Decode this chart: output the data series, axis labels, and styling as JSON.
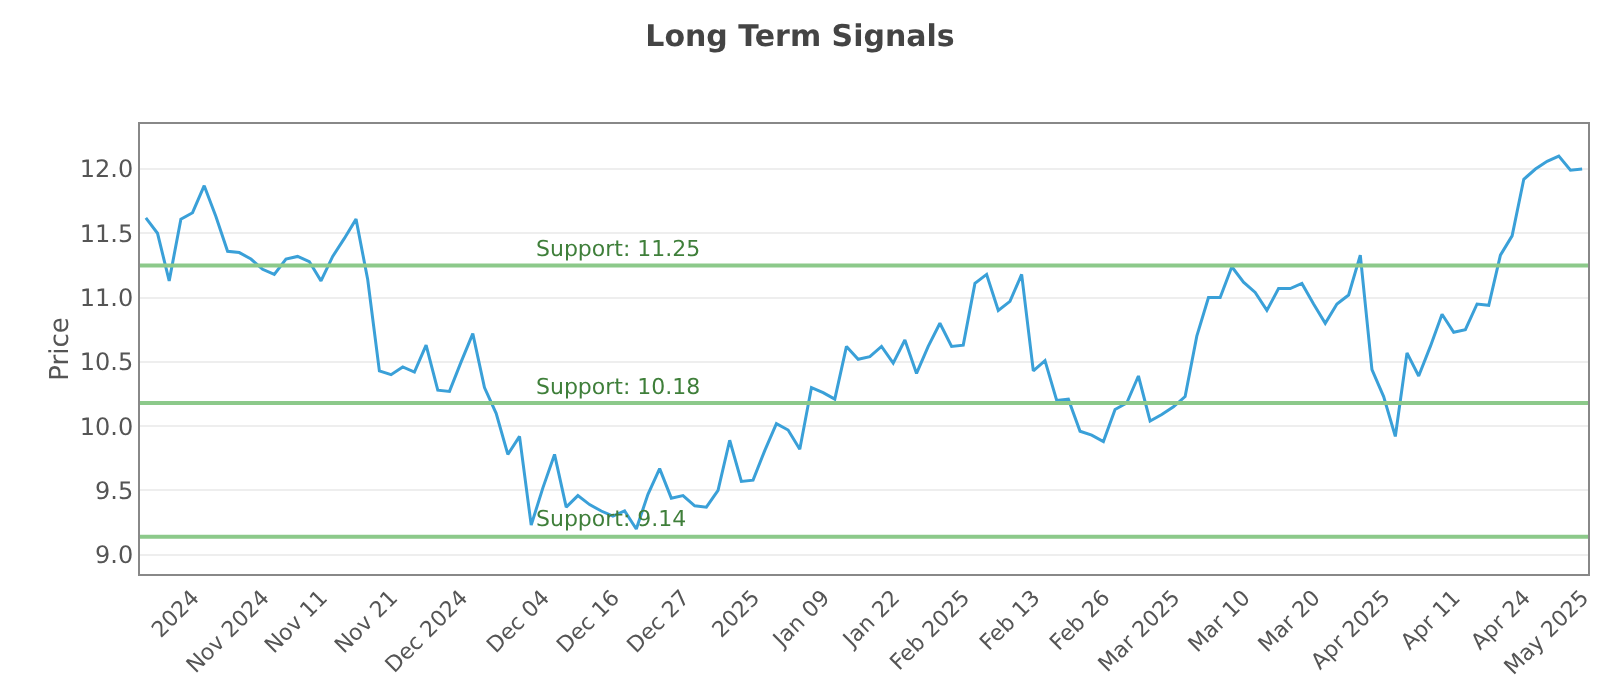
{
  "chart_data": {
    "type": "line",
    "title": "Long Term Signals",
    "ylabel": "Price",
    "categories": [
      null,
      null,
      null,
      null,
      "2024",
      null,
      null,
      null,
      null,
      null,
      "Nov 2024",
      null,
      null,
      null,
      null,
      "Nov 11",
      null,
      null,
      null,
      null,
      null,
      "Nov 21",
      null,
      null,
      null,
      null,
      null,
      "Dec 2024",
      null,
      null,
      null,
      null,
      null,
      null,
      "Dec 04",
      null,
      null,
      null,
      null,
      null,
      "Dec 16",
      null,
      null,
      null,
      null,
      null,
      "Dec 27",
      null,
      null,
      null,
      null,
      null,
      "2025",
      null,
      null,
      null,
      null,
      null,
      "Jan 09",
      null,
      null,
      null,
      null,
      null,
      "Jan 22",
      null,
      null,
      null,
      null,
      null,
      "Feb 2025",
      null,
      null,
      null,
      null,
      null,
      "Feb 13",
      null,
      null,
      null,
      null,
      null,
      "Feb 26",
      null,
      null,
      null,
      null,
      null,
      "Mar 2025",
      null,
      null,
      null,
      null,
      null,
      "Mar 10",
      null,
      null,
      null,
      null,
      null,
      "Mar 20",
      null,
      null,
      null,
      null,
      null,
      "Apr 2025",
      null,
      null,
      null,
      null,
      null,
      "Apr 11",
      null,
      null,
      null,
      null,
      null,
      "Apr 24",
      null,
      null,
      null,
      null,
      "May 2025"
    ],
    "series": [
      {
        "color": "#3aa0d8",
        "values": [
          11.62,
          11.5,
          11.13,
          11.61,
          11.66,
          11.87,
          11.63,
          11.36,
          11.35,
          11.3,
          11.22,
          11.18,
          11.3,
          11.32,
          11.28,
          11.13,
          11.32,
          11.46,
          11.61,
          11.14,
          10.43,
          10.4,
          10.46,
          10.42,
          10.63,
          10.28,
          10.27,
          10.5,
          10.72,
          10.3,
          10.1,
          9.78,
          9.92,
          9.23,
          9.52,
          9.78,
          9.37,
          9.46,
          9.39,
          9.34,
          9.3,
          9.34,
          9.2,
          9.47,
          9.67,
          9.44,
          9.46,
          9.38,
          9.37,
          9.5,
          9.89,
          9.57,
          9.58,
          9.81,
          10.02,
          9.97,
          9.82,
          10.3,
          10.26,
          10.21,
          10.62,
          10.52,
          10.54,
          10.62,
          10.49,
          10.67,
          10.41,
          10.62,
          10.8,
          10.62,
          10.63,
          11.11,
          11.18,
          10.9,
          10.97,
          11.18,
          10.43,
          10.51,
          10.2,
          10.21,
          9.96,
          9.93,
          9.88,
          10.13,
          10.18,
          10.39,
          10.04,
          10.09,
          10.15,
          10.23,
          10.7,
          11.0,
          11.0,
          11.24,
          11.12,
          11.04,
          10.9,
          11.07,
          11.07,
          11.11,
          10.95,
          10.8,
          10.95,
          11.02,
          11.33,
          10.44,
          10.23,
          9.92,
          10.57,
          10.39,
          10.62,
          10.87,
          10.73,
          10.75,
          10.95,
          10.94,
          11.33,
          11.48,
          11.92,
          12.0,
          12.06,
          12.1,
          11.99,
          12.0
        ]
      }
    ],
    "ylim": [
      8.85,
      12.35
    ],
    "yticks": [
      {
        "value": 9,
        "label": "9.0"
      },
      9.5,
      {
        "value": 10,
        "label": "10.0"
      },
      10.5,
      {
        "value": 11,
        "label": "11.0"
      },
      11.5,
      {
        "value": 12,
        "label": "12.0"
      }
    ],
    "grid": "y",
    "marker": "none",
    "line_style": "solid",
    "ref_lines": [
      {
        "axis": "y",
        "value": 11.25,
        "label": "Support: 11.25",
        "color": "#8cc98a"
      },
      {
        "axis": "y",
        "value": 10.18,
        "label": "Support: 10.18",
        "color": "#8cc98a"
      },
      {
        "axis": "y",
        "value": 9.14,
        "label": "Support: 9.14",
        "color": "#8cc98a"
      }
    ]
  }
}
